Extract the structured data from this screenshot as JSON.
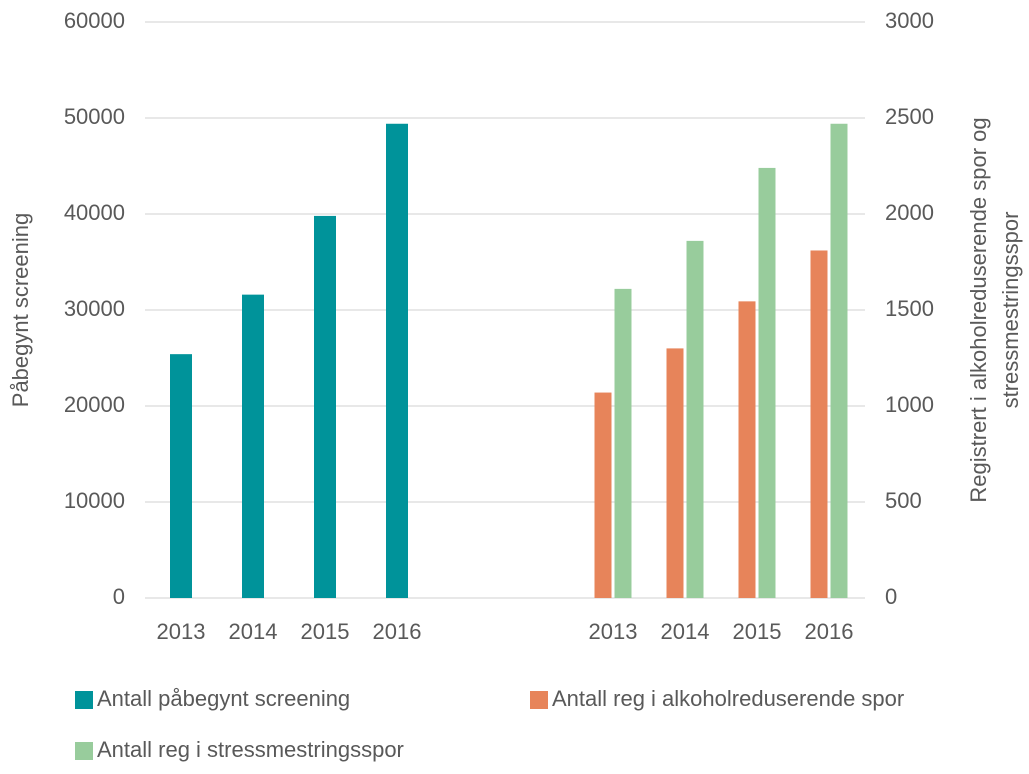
{
  "chart_data": {
    "type": "bar",
    "categories": [
      "2013",
      "2014",
      "2015",
      "2016",
      null,
      null,
      "2013",
      "2014",
      "2015",
      "2016"
    ],
    "series": [
      {
        "name": "Antall påbegynt screening",
        "color": "#00939a",
        "values": [
          25400,
          31600,
          39800,
          49400,
          null,
          null,
          null,
          null,
          null,
          null
        ]
      },
      {
        "name": "Antall reg i alkoholreduserende spor",
        "color": "#e7845a",
        "axis": "y2",
        "values": [
          null,
          null,
          null,
          null,
          null,
          null,
          1070,
          1300,
          1545,
          1810
        ]
      },
      {
        "name": "Antall reg i stressmestringsspor",
        "color": "#98cc9c",
        "axis": "y2",
        "values": [
          null,
          null,
          null,
          null,
          null,
          null,
          1610,
          1860,
          2240,
          2470
        ]
      }
    ],
    "ylabel": "Påbegynt screening",
    "y2label": [
      "Registrert  i alkoholreduserende  spor og",
      "stressmestringsspor"
    ],
    "ylim": [
      0,
      60000
    ],
    "yticks": [
      0,
      10000,
      20000,
      30000,
      40000,
      50000,
      60000
    ],
    "y2lim": [
      0,
      3000
    ],
    "y2ticks": [
      0,
      500,
      1000,
      1500,
      2000,
      2500,
      3000
    ],
    "grid": true,
    "legend": "bottom"
  }
}
